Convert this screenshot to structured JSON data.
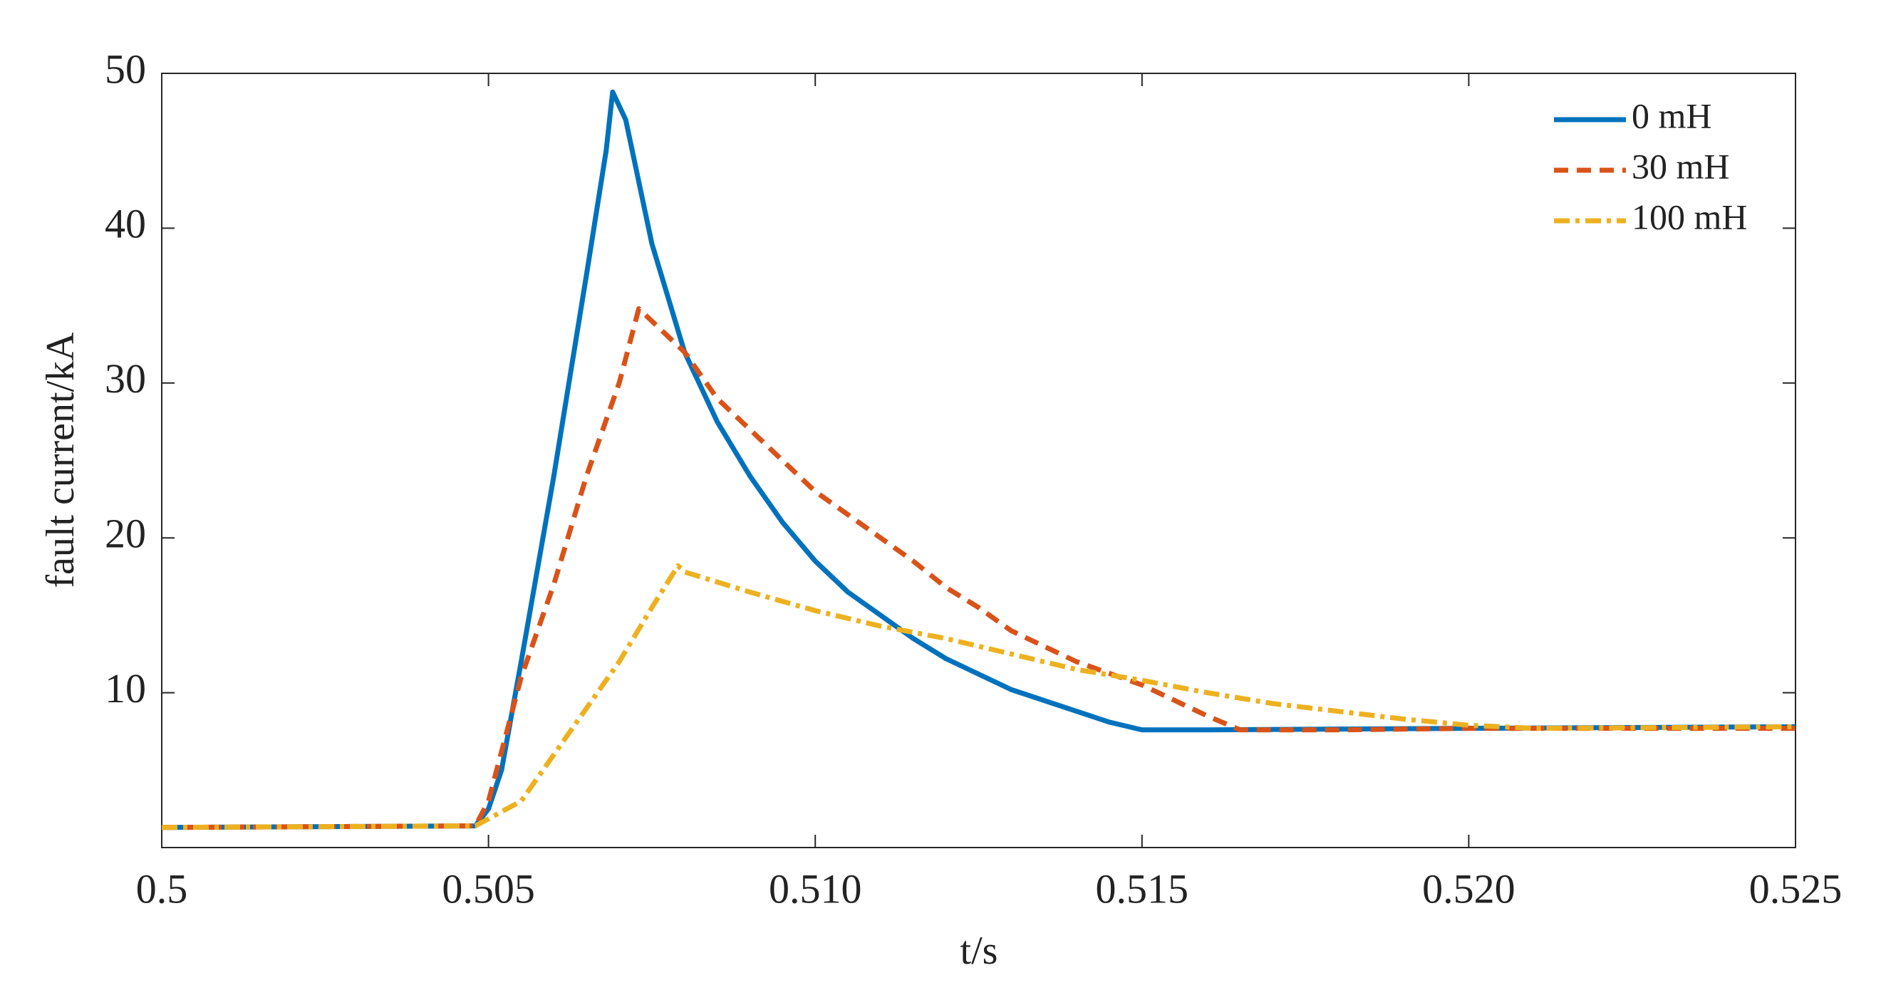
{
  "chart_data": {
    "type": "line",
    "xlabel": "t/s",
    "ylabel": "fault current/kA",
    "xlim": [
      0.5,
      0.525
    ],
    "xticks": [
      0.5,
      0.505,
      {
        "value": 0.51,
        "label": "0.510"
      },
      0.515,
      {
        "value": 0.52,
        "label": "0.520"
      },
      0.525
    ],
    "ylim": [
      0,
      50
    ],
    "yticks": [
      10,
      20,
      30,
      40,
      50
    ],
    "grid": false,
    "legend": "upper right",
    "series": [
      {
        "name": "0 mH",
        "color": "#0072BD",
        "dash": "solid",
        "x": [
          0.5,
          0.5048,
          0.505,
          0.5052,
          0.5055,
          0.506,
          0.5065,
          0.5068,
          0.5069,
          0.5071,
          0.5075,
          0.508,
          0.5085,
          0.509,
          0.5095,
          0.51,
          0.5105,
          0.511,
          0.5115,
          0.512,
          0.513,
          0.514,
          0.5145,
          0.515,
          0.516,
          0.52,
          0.525
        ],
        "values": [
          1.3,
          1.4,
          2.5,
          5,
          12,
          24,
          37,
          45,
          48.8,
          47,
          39,
          32,
          27.5,
          24,
          21,
          18.5,
          16.5,
          15,
          13.5,
          12.2,
          10.2,
          8.8,
          8.1,
          7.6,
          7.6,
          7.7,
          7.8
        ]
      },
      {
        "name": "30 mH",
        "color": "#D95319",
        "dash": "dashed",
        "x": [
          0.5,
          0.5048,
          0.505,
          0.5055,
          0.506,
          0.5065,
          0.507,
          0.5073,
          0.508,
          0.5085,
          0.509,
          0.5095,
          0.51,
          0.5105,
          0.511,
          0.5115,
          0.512,
          0.5125,
          0.513,
          0.514,
          0.515,
          0.516,
          0.5165,
          0.518,
          0.52,
          0.525
        ],
        "values": [
          1.3,
          1.4,
          3,
          11,
          17,
          24,
          30,
          34.8,
          32,
          29,
          27,
          25,
          23,
          21.5,
          20,
          18.5,
          16.8,
          15.5,
          14,
          12,
          10.5,
          8.5,
          7.6,
          7.6,
          7.7,
          7.7
        ]
      },
      {
        "name": "100 mH",
        "color": "#EDB120",
        "dash": "dashdot",
        "x": [
          0.5,
          0.5048,
          0.5055,
          0.506,
          0.5065,
          0.507,
          0.5075,
          0.5079,
          0.508,
          0.509,
          0.51,
          0.511,
          0.512,
          0.513,
          0.514,
          0.515,
          0.516,
          0.517,
          0.518,
          0.519,
          0.52,
          0.521,
          0.525
        ],
        "values": [
          1.3,
          1.4,
          3,
          6,
          9,
          12,
          15.5,
          18.2,
          17.8,
          16.5,
          15.3,
          14.3,
          13.5,
          12.5,
          11.5,
          10.8,
          10,
          9.3,
          8.8,
          8.3,
          7.9,
          7.7,
          7.8
        ]
      }
    ]
  }
}
